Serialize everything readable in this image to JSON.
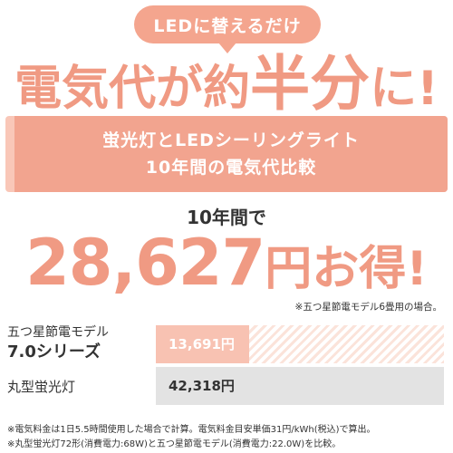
{
  "bubble": {
    "text": "LEDに替えるだけ"
  },
  "headline": {
    "part1": "電気代が約",
    "part2": "半分",
    "part3": "に!"
  },
  "comparison_box": {
    "line1": "蛍光灯とLEDシーリングライト",
    "line2": "10年間の電気代比較"
  },
  "savings": {
    "period_label": "10年間で",
    "amount": "28,627",
    "suffix": "円お得!",
    "note": "※五つ星節電モデル6畳用の場合。"
  },
  "chart_data": {
    "type": "bar",
    "orientation": "horizontal",
    "categories": [
      "五つ星節電モデル 7.0シリーズ",
      "丸型蛍光灯"
    ],
    "values": [
      13691,
      42318
    ],
    "value_labels": [
      "13,691円",
      "42,318円"
    ],
    "xlim": [
      0,
      42318
    ]
  },
  "rows": [
    {
      "label_line1": "五つ星節電モデル",
      "label_line2": "7.0シリーズ",
      "value_label": "13,691円"
    },
    {
      "label_line1": "丸型蛍光灯",
      "value_label": "42,318円"
    }
  ],
  "footnotes": [
    "※電気料金は1日5.5時間使用した場合で計算。電気料金目安単価31円/kWh(税込)で算出。",
    "※丸型蛍光灯72形(消費電力:68W)と五つ星節電モデル(消費電力:22.0W)を比較。"
  ],
  "colors": {
    "accent": "#f09a83",
    "bubble": "#f4a58e",
    "led_bar": "#f8c2b2",
    "fluorescent_bar": "#e3e3e3"
  }
}
